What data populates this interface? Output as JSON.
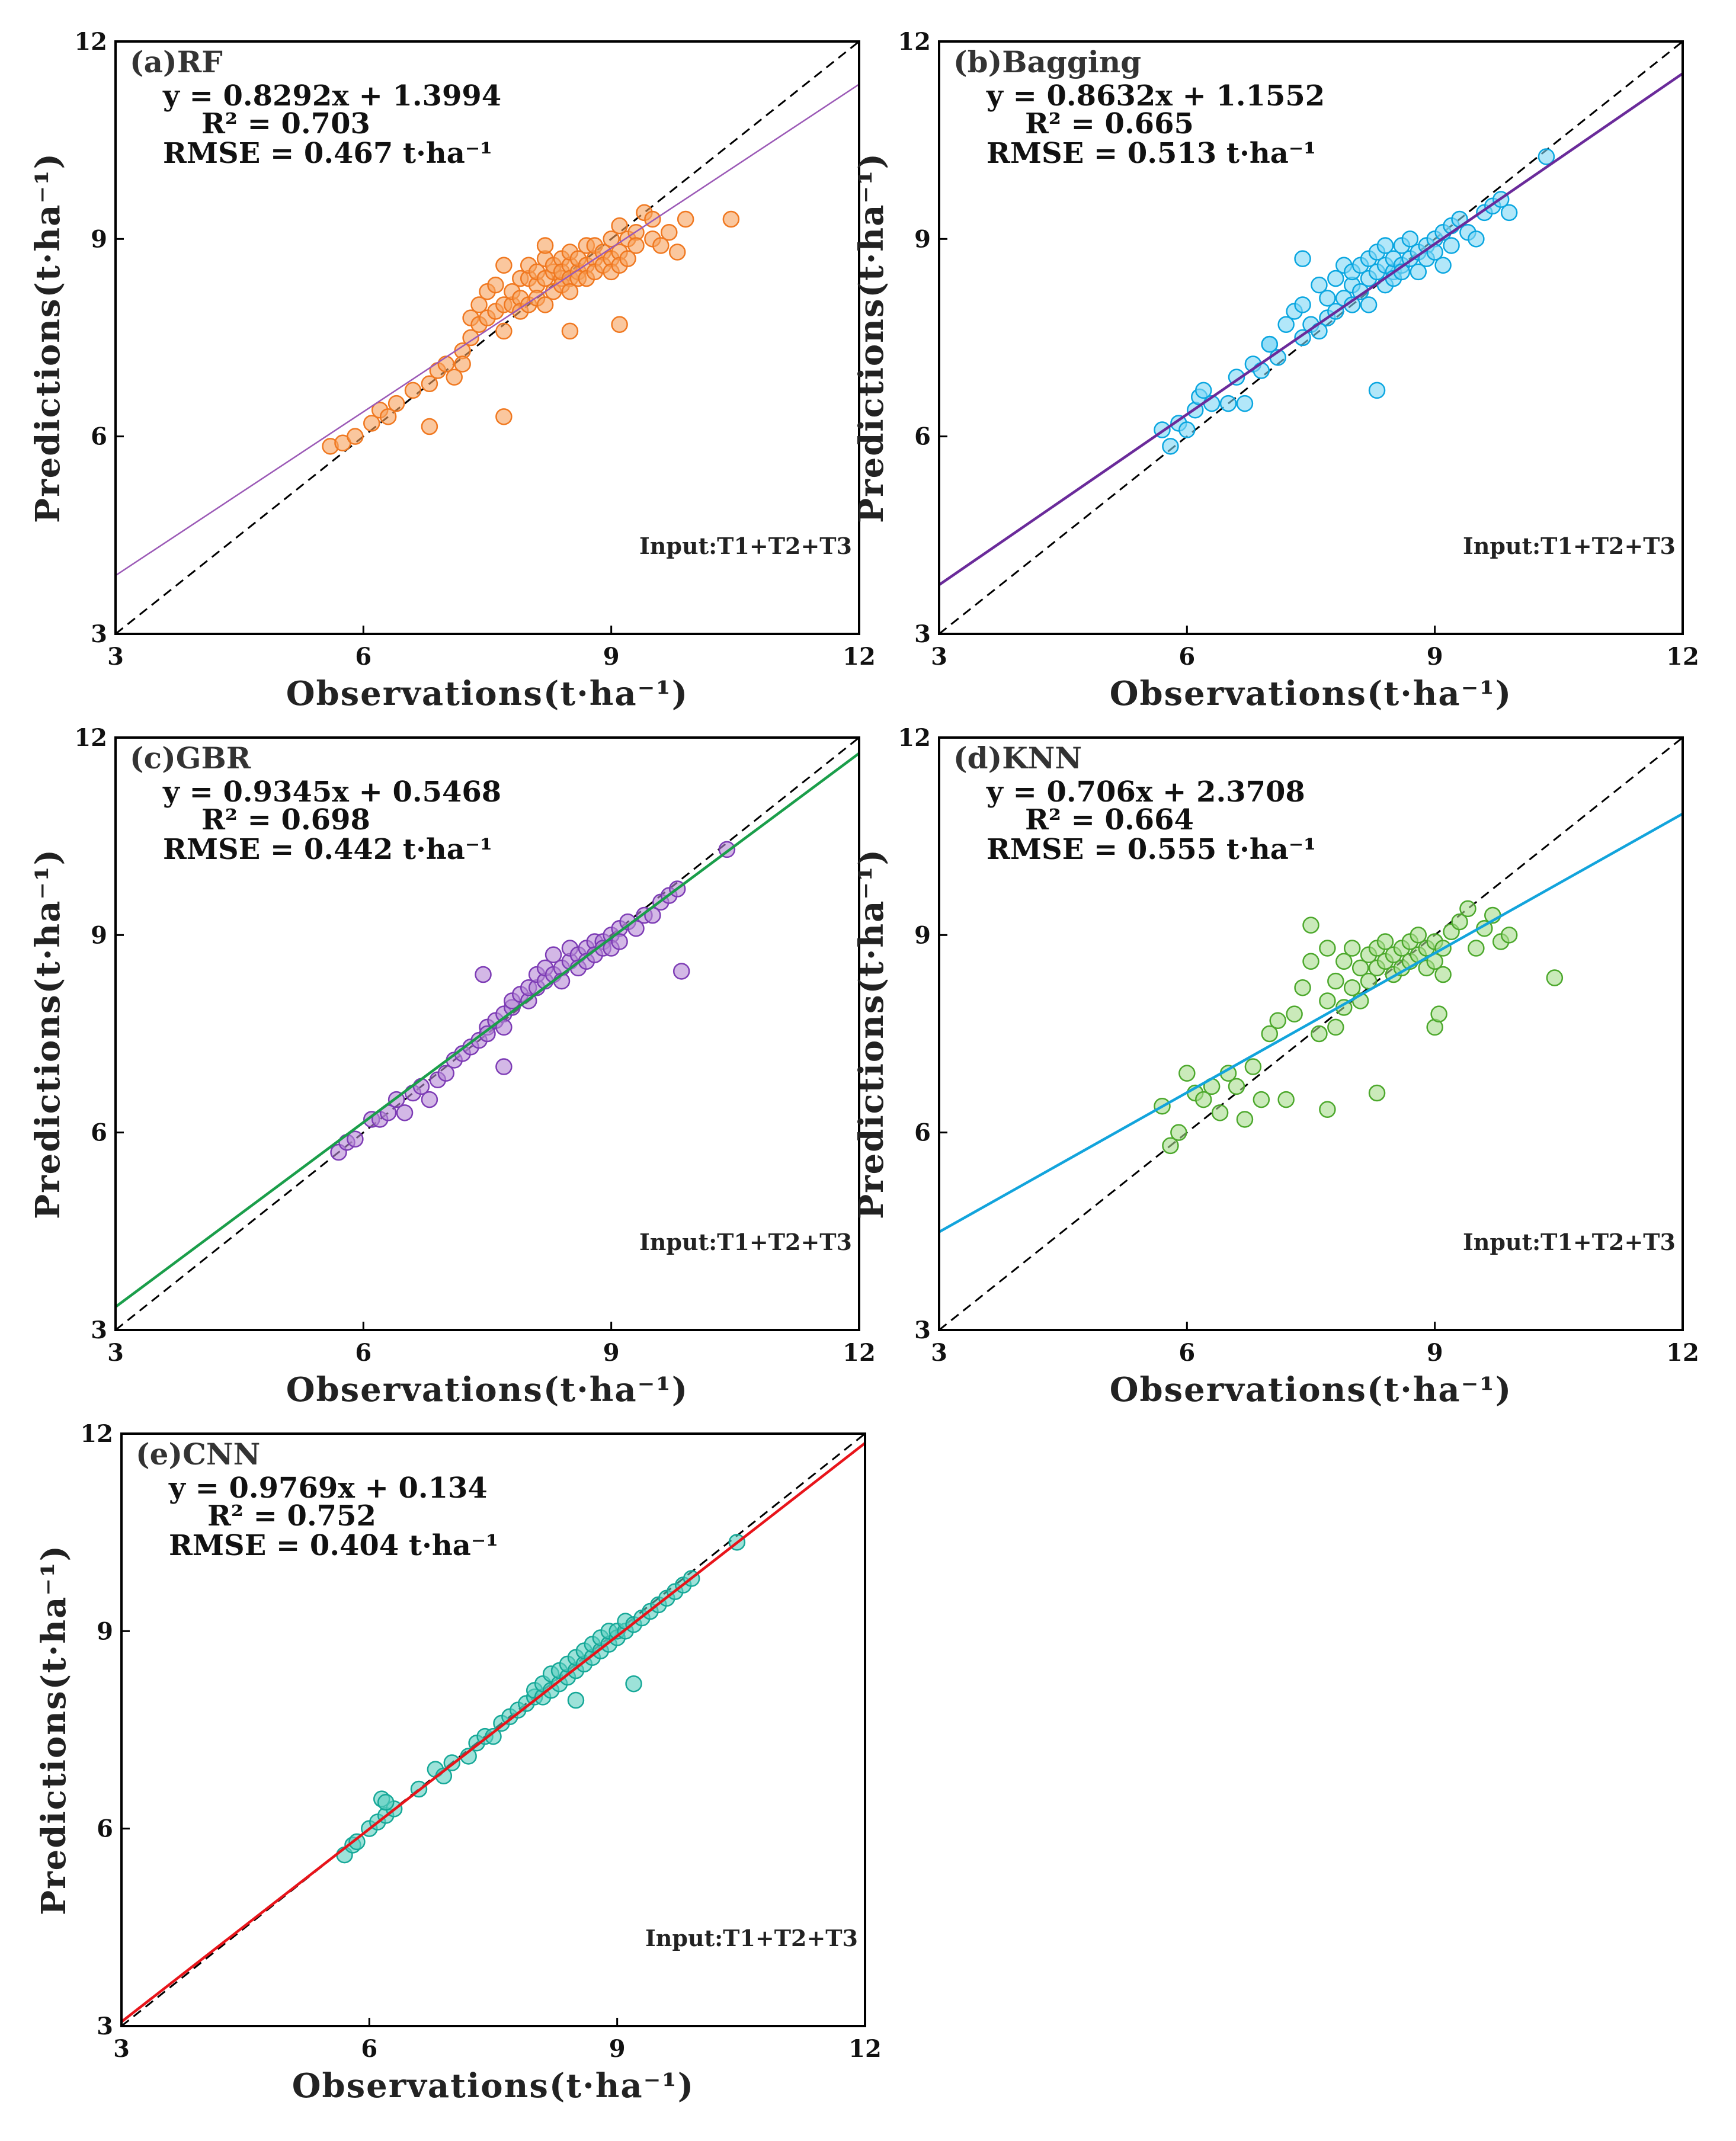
{
  "chart_data": [
    {
      "id": "a",
      "type": "scatter",
      "title": "(a)RF",
      "xlabel": "Observations(t·ha⁻¹)",
      "ylabel": "Predictions(t·ha⁻¹)",
      "xlim": [
        3,
        12
      ],
      "ylim": [
        3,
        12
      ],
      "ticks": [
        "3",
        "6",
        "9",
        "12"
      ],
      "tick_values": [
        3,
        6,
        9,
        12
      ],
      "equation": "y = 0.8292x + 1.3994",
      "r2": "R² = 0.703",
      "rmse": "RMSE = 0.467 t·ha⁻¹",
      "input": "Input:T1+T2+T3",
      "fit": {
        "slope": 0.8292,
        "intercept": 1.3994
      },
      "point_color": "#f7a25e",
      "point_edge": "#f07820",
      "fit_color": "#9b59b6",
      "x": [
        5.6,
        5.75,
        5.9,
        6.1,
        6.2,
        6.3,
        6.4,
        6.6,
        6.8,
        6.9,
        7.0,
        7.1,
        7.2,
        7.3,
        7.3,
        7.4,
        7.4,
        7.5,
        7.5,
        7.6,
        7.6,
        7.7,
        7.7,
        7.7,
        7.8,
        7.8,
        7.9,
        7.9,
        7.9,
        8.0,
        8.0,
        8.0,
        8.1,
        8.1,
        8.1,
        8.2,
        8.2,
        8.2,
        8.3,
        8.3,
        8.3,
        8.4,
        8.4,
        8.4,
        8.4,
        8.5,
        8.5,
        8.5,
        8.5,
        8.6,
        8.6,
        8.6,
        8.7,
        8.7,
        8.7,
        8.8,
        8.8,
        8.8,
        8.9,
        8.9,
        9.0,
        9.0,
        9.0,
        9.1,
        9.1,
        9.1,
        9.2,
        9.2,
        9.3,
        9.3,
        9.4,
        9.5,
        9.5,
        9.6,
        9.7,
        9.8,
        9.9,
        10.45,
        6.8,
        7.7,
        8.5,
        9.1,
        8.2,
        7.2
      ],
      "y": [
        5.85,
        5.9,
        6.0,
        6.2,
        6.4,
        6.3,
        6.5,
        6.7,
        6.8,
        7.0,
        7.1,
        6.9,
        7.3,
        7.8,
        7.5,
        8.0,
        7.7,
        8.2,
        7.8,
        7.9,
        8.3,
        8.0,
        7.6,
        8.6,
        8.0,
        8.2,
        8.1,
        8.4,
        7.9,
        8.4,
        8.0,
        8.6,
        8.3,
        8.5,
        8.1,
        8.7,
        8.4,
        8.0,
        8.5,
        8.2,
        8.6,
        8.4,
        8.7,
        8.3,
        8.5,
        8.6,
        8.4,
        8.8,
        8.2,
        8.5,
        8.7,
        8.4,
        8.6,
        8.9,
        8.4,
        8.7,
        8.9,
        8.5,
        8.8,
        8.6,
        9.0,
        8.7,
        8.5,
        9.2,
        8.8,
        8.6,
        9.0,
        8.7,
        9.1,
        8.9,
        9.4,
        9.0,
        9.3,
        8.9,
        9.1,
        8.8,
        9.3,
        9.3,
        6.15,
        6.3,
        7.6,
        7.7,
        8.9,
        7.1
      ]
    },
    {
      "id": "b",
      "type": "scatter",
      "title": "(b)Bagging",
      "xlabel": "Observations(t·ha⁻¹)",
      "ylabel": "Predictions(t·ha⁻¹)",
      "xlim": [
        3,
        12
      ],
      "ylim": [
        3,
        12
      ],
      "ticks": [
        "3",
        "6",
        "9",
        "12"
      ],
      "tick_values": [
        3,
        6,
        9,
        12
      ],
      "equation": "y = 0.8632x + 1.1552",
      "r2": "R² = 0.665",
      "rmse": "RMSE = 0.513 t·ha⁻¹",
      "input": "Input:T1+T2+T3",
      "fit": {
        "slope": 0.8632,
        "intercept": 1.1552
      },
      "point_color": "#7fd7f5",
      "point_edge": "#0aa6e0",
      "fit_color": "#6a2a9a",
      "x": [
        5.7,
        5.8,
        5.9,
        6.0,
        6.1,
        6.15,
        6.2,
        6.3,
        6.5,
        6.6,
        6.7,
        6.8,
        6.9,
        7.0,
        7.1,
        7.2,
        7.3,
        7.4,
        7.4,
        7.5,
        7.6,
        7.6,
        7.7,
        7.7,
        7.8,
        7.8,
        7.9,
        7.9,
        8.0,
        8.0,
        8.0,
        8.1,
        8.1,
        8.2,
        8.2,
        8.2,
        8.3,
        8.3,
        8.4,
        8.4,
        8.4,
        8.5,
        8.5,
        8.5,
        8.6,
        8.6,
        8.6,
        8.7,
        8.7,
        8.8,
        8.8,
        8.9,
        8.9,
        9.0,
        9.0,
        9.1,
        9.1,
        9.2,
        9.2,
        9.3,
        9.4,
        9.5,
        9.6,
        9.7,
        9.8,
        9.9,
        10.35,
        8.3,
        7.4,
        7.0
      ],
      "y": [
        6.1,
        5.85,
        6.2,
        6.1,
        6.4,
        6.6,
        6.7,
        6.5,
        6.5,
        6.9,
        6.5,
        7.1,
        7.0,
        7.4,
        7.2,
        7.7,
        7.9,
        8.0,
        7.5,
        7.7,
        7.6,
        8.3,
        7.8,
        8.1,
        7.9,
        8.4,
        8.1,
        8.6,
        8.0,
        8.3,
        8.5,
        8.2,
        8.6,
        8.4,
        8.0,
        8.7,
        8.5,
        8.8,
        8.3,
        8.6,
        8.9,
        8.5,
        8.7,
        8.4,
        8.6,
        8.9,
        8.5,
        8.7,
        9.0,
        8.8,
        8.5,
        8.9,
        8.7,
        9.0,
        8.8,
        9.1,
        8.6,
        9.2,
        8.9,
        9.3,
        9.1,
        9.0,
        9.4,
        9.5,
        9.6,
        9.4,
        10.25,
        6.7,
        8.7,
        7.4
      ]
    },
    {
      "id": "c",
      "type": "scatter",
      "title": "(c)GBR",
      "xlabel": "Observations(t·ha⁻¹)",
      "ylabel": "Predictions(t·ha⁻¹)",
      "xlim": [
        3,
        12
      ],
      "ylim": [
        3,
        12
      ],
      "ticks": [
        "3",
        "6",
        "9",
        "12"
      ],
      "tick_values": [
        3,
        6,
        9,
        12
      ],
      "equation": "y = 0.9345x + 0.5468",
      "r2": "R² = 0.698",
      "rmse": "RMSE = 0.442 t·ha⁻¹",
      "input": "Input:T1+T2+T3",
      "fit": {
        "slope": 0.9345,
        "intercept": 0.5468
      },
      "point_color": "#b589d6",
      "point_edge": "#7d3cb5",
      "fit_color": "#1a9e4a",
      "x": [
        5.7,
        5.8,
        5.9,
        6.1,
        6.2,
        6.3,
        6.4,
        6.6,
        6.7,
        6.8,
        6.9,
        7.0,
        7.1,
        7.2,
        7.3,
        7.4,
        7.5,
        7.5,
        7.6,
        7.7,
        7.7,
        7.8,
        7.8,
        7.9,
        8.0,
        8.0,
        8.1,
        8.1,
        8.2,
        8.2,
        8.3,
        8.3,
        8.4,
        8.4,
        8.5,
        8.5,
        8.6,
        8.6,
        8.7,
        8.7,
        8.8,
        8.8,
        8.9,
        8.9,
        9.0,
        9.0,
        9.1,
        9.1,
        9.2,
        9.3,
        9.4,
        9.5,
        9.6,
        9.7,
        9.8,
        9.85,
        10.4,
        7.45,
        7.7,
        6.5
      ],
      "y": [
        5.7,
        5.85,
        5.9,
        6.2,
        6.2,
        6.3,
        6.5,
        6.6,
        6.7,
        6.5,
        6.8,
        6.9,
        7.1,
        7.2,
        7.3,
        7.4,
        7.6,
        7.5,
        7.7,
        7.8,
        7.6,
        7.9,
        8.0,
        8.1,
        8.0,
        8.2,
        8.2,
        8.4,
        8.3,
        8.5,
        8.4,
        8.7,
        8.5,
        8.3,
        8.6,
        8.8,
        8.7,
        8.5,
        8.8,
        8.6,
        8.9,
        8.7,
        8.9,
        8.8,
        9.0,
        8.8,
        9.1,
        8.9,
        9.2,
        9.1,
        9.3,
        9.3,
        9.5,
        9.6,
        9.7,
        8.45,
        10.3,
        8.4,
        7.0,
        6.3
      ]
    },
    {
      "id": "d",
      "type": "scatter",
      "title": "(d)KNN",
      "xlabel": "Observations(t·ha⁻¹)",
      "ylabel": "Predictions(t·ha⁻¹)",
      "xlim": [
        3,
        12
      ],
      "ylim": [
        3,
        12
      ],
      "ticks": [
        "3",
        "6",
        "9",
        "12"
      ],
      "tick_values": [
        3,
        6,
        9,
        12
      ],
      "equation": "y = 0.706x + 2.3708",
      "r2": "R² = 0.664",
      "rmse": "RMSE = 0.555 t·ha⁻¹",
      "input": "Input:T1+T2+T3",
      "fit": {
        "slope": 0.706,
        "intercept": 2.3708
      },
      "point_color": "#a6dc8c",
      "point_edge": "#4ca82c",
      "fit_color": "#12a4dc",
      "x": [
        5.7,
        5.8,
        5.9,
        6.0,
        6.1,
        6.2,
        6.3,
        6.4,
        6.5,
        6.6,
        6.7,
        6.8,
        6.9,
        7.0,
        7.1,
        7.2,
        7.3,
        7.4,
        7.5,
        7.5,
        7.6,
        7.7,
        7.7,
        7.8,
        7.8,
        7.9,
        7.9,
        8.0,
        8.0,
        8.1,
        8.1,
        8.2,
        8.2,
        8.3,
        8.3,
        8.4,
        8.4,
        8.5,
        8.5,
        8.6,
        8.6,
        8.7,
        8.7,
        8.8,
        8.8,
        8.9,
        8.9,
        9.0,
        9.0,
        9.1,
        9.1,
        9.2,
        9.3,
        9.4,
        9.5,
        9.6,
        9.7,
        9.8,
        9.9,
        10.45,
        8.3,
        7.7,
        9.0,
        9.05
      ],
      "y": [
        6.4,
        5.8,
        6.0,
        6.9,
        6.6,
        6.5,
        6.7,
        6.3,
        6.9,
        6.7,
        6.2,
        7.0,
        6.5,
        7.5,
        7.7,
        6.5,
        7.8,
        8.2,
        8.6,
        9.15,
        7.5,
        8.0,
        8.8,
        7.6,
        8.3,
        7.9,
        8.6,
        8.2,
        8.8,
        8.5,
        8.0,
        8.7,
        8.3,
        8.8,
        8.5,
        8.6,
        8.9,
        8.7,
        8.4,
        8.8,
        8.5,
        8.9,
        8.6,
        8.7,
        9.0,
        8.5,
        8.8,
        8.9,
        8.6,
        8.8,
        8.4,
        9.05,
        9.2,
        9.4,
        8.8,
        9.1,
        9.3,
        8.9,
        9.0,
        8.35,
        6.6,
        6.35,
        7.6,
        7.8
      ]
    },
    {
      "id": "e",
      "type": "scatter",
      "title": "(e)CNN",
      "xlabel": "Observations(t·ha⁻¹)",
      "ylabel": "Predictions(t·ha⁻¹)",
      "xlim": [
        3,
        12
      ],
      "ylim": [
        3,
        12
      ],
      "ticks": [
        "3",
        "6",
        "9",
        "12"
      ],
      "tick_values": [
        3,
        6,
        9,
        12
      ],
      "equation": "y = 0.9769x + 0.134",
      "r2": "R² = 0.752",
      "rmse": "RMSE = 0.404 t·ha⁻¹",
      "input": "Input:T1+T2+T3",
      "fit": {
        "slope": 0.9769,
        "intercept": 0.134
      },
      "point_color": "#5ccfc0",
      "point_edge": "#16a898",
      "fit_color": "#e8141a",
      "x": [
        5.7,
        5.8,
        5.85,
        6.0,
        6.1,
        6.15,
        6.2,
        6.3,
        6.6,
        6.8,
        6.9,
        7.0,
        7.2,
        7.3,
        7.4,
        7.5,
        7.6,
        7.7,
        7.8,
        7.9,
        8.0,
        8.0,
        8.1,
        8.1,
        8.2,
        8.2,
        8.3,
        8.3,
        8.4,
        8.4,
        8.5,
        8.5,
        8.6,
        8.6,
        8.7,
        8.7,
        8.8,
        8.8,
        8.9,
        8.9,
        9.0,
        9.0,
        9.1,
        9.1,
        9.2,
        9.3,
        9.4,
        9.5,
        9.6,
        9.7,
        9.8,
        9.9,
        10.45,
        8.5,
        9.2,
        6.2
      ],
      "y": [
        5.6,
        5.75,
        5.8,
        6.0,
        6.1,
        6.45,
        6.2,
        6.3,
        6.6,
        6.9,
        6.8,
        7.0,
        7.1,
        7.3,
        7.4,
        7.4,
        7.6,
        7.7,
        7.8,
        7.9,
        8.0,
        8.1,
        8.0,
        8.2,
        8.1,
        8.35,
        8.2,
        8.4,
        8.3,
        8.5,
        8.4,
        8.6,
        8.5,
        8.7,
        8.6,
        8.8,
        8.7,
        8.9,
        8.8,
        9.0,
        8.9,
        9.0,
        9.0,
        9.15,
        9.1,
        9.2,
        9.3,
        9.4,
        9.5,
        9.6,
        9.7,
        9.8,
        10.35,
        7.95,
        8.2,
        6.4
      ]
    }
  ]
}
